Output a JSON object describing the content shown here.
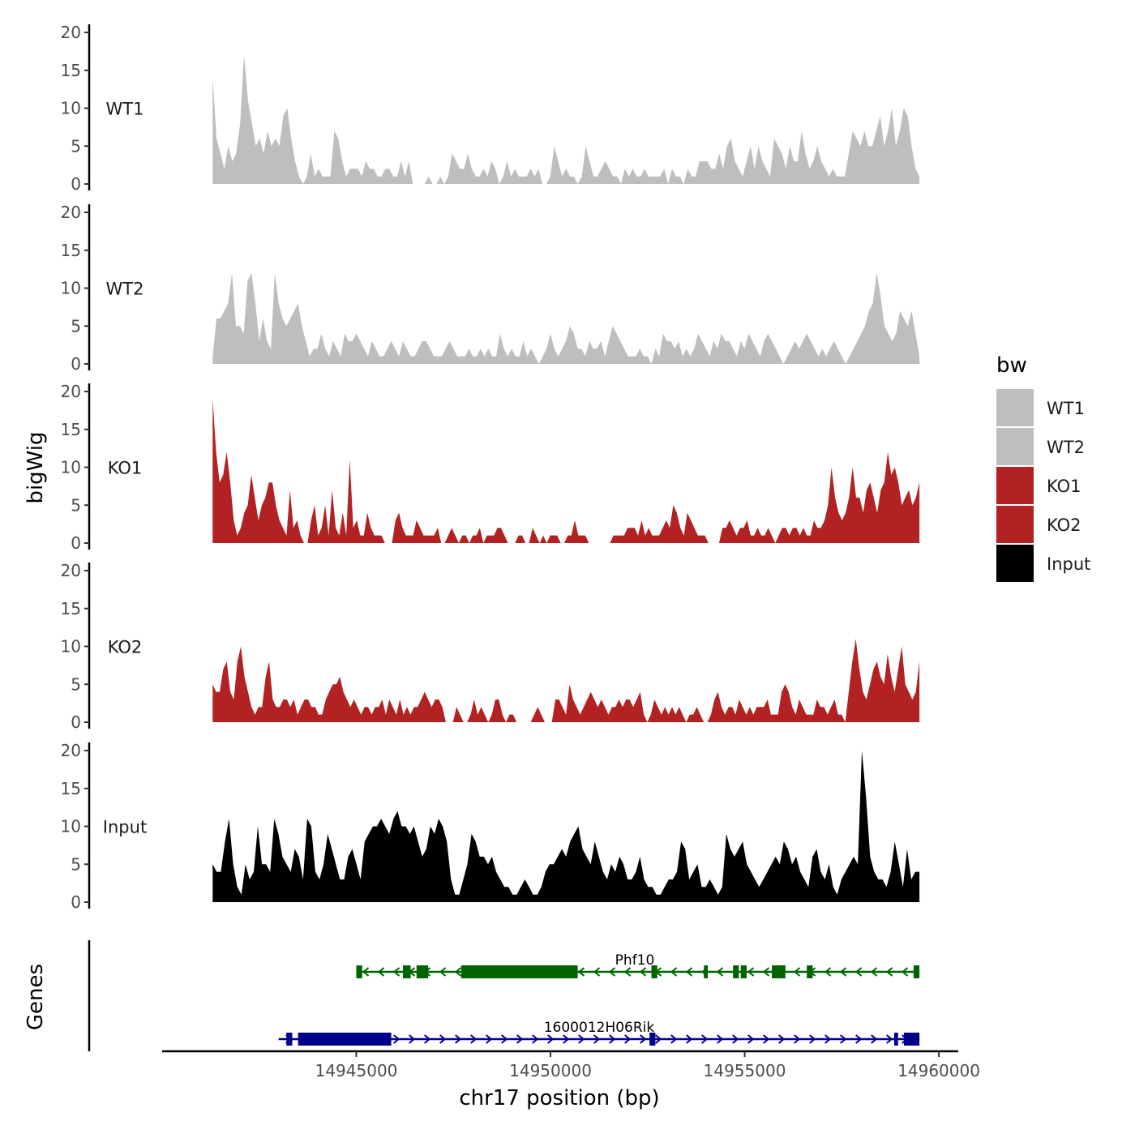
{
  "chart_data": {
    "type": "area",
    "title": "",
    "ylabel": "bigWig",
    "xlabel": "chr17 position (bp)",
    "genes_label": "Genes",
    "chromosome": "chr17",
    "xlim": [
      14940000,
      14960500
    ],
    "x_start": 14941300,
    "x_end": 14959500,
    "ylim": [
      0,
      20
    ],
    "y_ticks": [
      0,
      5,
      10,
      15,
      20
    ],
    "x_ticks": [
      14945000,
      14950000,
      14955000,
      14960000
    ],
    "x_tick_labels": [
      "14945000",
      "14950000",
      "14955000",
      "14960000"
    ],
    "legend": {
      "title": "bw",
      "entries": [
        {
          "label": "WT1",
          "color": "#bebebe"
        },
        {
          "label": "WT2",
          "color": "#bebebe"
        },
        {
          "label": "KO1",
          "color": "#b22222"
        },
        {
          "label": "KO2",
          "color": "#b22222"
        },
        {
          "label": "Input",
          "color": "#000000"
        }
      ]
    },
    "tracks": [
      {
        "name": "WT1",
        "color": "#bebebe",
        "values": [
          14,
          6,
          4,
          2,
          5,
          3,
          4,
          8,
          17,
          11,
          8,
          5,
          6,
          4,
          7,
          5,
          6,
          5,
          9,
          10,
          6,
          3,
          1,
          0,
          1,
          4,
          1,
          2,
          1,
          1,
          1,
          7,
          6,
          3,
          1,
          2,
          2,
          2,
          1,
          3,
          2,
          2,
          1,
          1,
          2,
          2,
          1,
          1,
          3,
          1,
          3,
          0,
          0,
          0,
          0,
          1,
          0,
          0,
          1,
          0,
          1,
          4,
          3,
          2,
          2,
          4,
          2,
          1,
          1,
          2,
          1,
          3,
          2,
          0,
          1,
          3,
          1,
          2,
          1,
          1,
          1,
          2,
          1,
          2,
          0,
          0,
          1,
          5,
          3,
          1,
          2,
          1,
          1,
          0,
          1,
          5,
          3,
          1,
          1,
          2,
          3,
          2,
          1,
          1,
          0,
          2,
          1,
          2,
          1,
          1,
          2,
          1,
          1,
          1,
          1,
          2,
          0,
          2,
          1,
          1,
          0,
          2,
          1,
          1,
          3,
          3,
          3,
          2,
          2,
          4,
          2,
          5,
          6,
          3,
          2,
          1,
          3,
          5,
          2,
          5,
          3,
          2,
          1,
          6,
          5,
          4,
          2,
          5,
          3,
          3,
          7,
          4,
          2,
          3,
          5,
          3,
          2,
          1,
          2,
          1,
          1,
          1,
          4,
          7,
          6,
          5,
          7,
          5,
          5,
          7,
          9,
          5,
          7,
          10,
          5,
          7,
          10,
          9,
          5,
          2,
          1
        ]
      },
      {
        "name": "WT2",
        "color": "#bebebe",
        "values": [
          1,
          6,
          6,
          7,
          8,
          12,
          5,
          5,
          4,
          11,
          12,
          8,
          3,
          6,
          3,
          2,
          12,
          8,
          6,
          5,
          6,
          7,
          8,
          5,
          3,
          1,
          2,
          2,
          4,
          2,
          1,
          3,
          2,
          1,
          4,
          3,
          3,
          4,
          3,
          2,
          1,
          3,
          2,
          1,
          1,
          2,
          3,
          2,
          1,
          3,
          2,
          1,
          1,
          2,
          3,
          3,
          2,
          1,
          1,
          1,
          2,
          3,
          2,
          1,
          1,
          1,
          2,
          1,
          1,
          2,
          1,
          2,
          1,
          1,
          4,
          2,
          1,
          2,
          1,
          1,
          3,
          1,
          2,
          1,
          0,
          1,
          2,
          4,
          2,
          1,
          2,
          3,
          5,
          4,
          2,
          2,
          1,
          3,
          2,
          2,
          3,
          1,
          3,
          5,
          4,
          3,
          2,
          1,
          1,
          1,
          2,
          1,
          1,
          0,
          2,
          1,
          4,
          3,
          3,
          2,
          3,
          1,
          2,
          1,
          2,
          4,
          3,
          2,
          1,
          3,
          2,
          4,
          3,
          3,
          2,
          1,
          3,
          2,
          4,
          3,
          2,
          1,
          3,
          4,
          3,
          2,
          1,
          0,
          1,
          2,
          3,
          2,
          3,
          4,
          3,
          2,
          1,
          2,
          1,
          2,
          3,
          2,
          1,
          0,
          1,
          2,
          3,
          4,
          5,
          7,
          8,
          12,
          9,
          5,
          4,
          3,
          4,
          7,
          6,
          5,
          7,
          4,
          1
        ]
      },
      {
        "name": "KO1",
        "color": "#b22222",
        "values": [
          19,
          12,
          8,
          9,
          12,
          8,
          3,
          1,
          2,
          4,
          5,
          9,
          6,
          3,
          5,
          6,
          8,
          8,
          5,
          3,
          2,
          1,
          7,
          2,
          3,
          1,
          0,
          0,
          3,
          5,
          1,
          2,
          5,
          1,
          7,
          2,
          1,
          4,
          1,
          11,
          2,
          3,
          1,
          1,
          4,
          2,
          1,
          1,
          1,
          0,
          0,
          0,
          3,
          4,
          2,
          1,
          1,
          1,
          3,
          2,
          1,
          1,
          1,
          1,
          2,
          0,
          0,
          1,
          2,
          1,
          0,
          1,
          1,
          0,
          1,
          1,
          2,
          0,
          1,
          1,
          1,
          2,
          2,
          1,
          0,
          0,
          0,
          1,
          1,
          0,
          0,
          2,
          1,
          0,
          1,
          0,
          1,
          1,
          1,
          0,
          0,
          1,
          1,
          3,
          1,
          1,
          1,
          0,
          0,
          0,
          0,
          0,
          0,
          0,
          1,
          1,
          1,
          1,
          2,
          2,
          2,
          1,
          3,
          1,
          2,
          1,
          1,
          1,
          2,
          3,
          2,
          5,
          4,
          2,
          1,
          4,
          3,
          2,
          1,
          1,
          1,
          0,
          0,
          0,
          0,
          2,
          2,
          3,
          2,
          1,
          2,
          2,
          3,
          1,
          1,
          2,
          1,
          1,
          2,
          1,
          0,
          1,
          2,
          2,
          1,
          2,
          2,
          1,
          2,
          1,
          1,
          3,
          2,
          2,
          3,
          5,
          10,
          6,
          4,
          3,
          4,
          6,
          10,
          6,
          6,
          4,
          7,
          8,
          6,
          4,
          7,
          8,
          12,
          9,
          10,
          8,
          5,
          6,
          7,
          5,
          6,
          8
        ]
      },
      {
        "name": "KO2",
        "color": "#b22222",
        "values": [
          5,
          4,
          4,
          7,
          8,
          4,
          3,
          8,
          10,
          6,
          4,
          2,
          1,
          2,
          2,
          6,
          8,
          3,
          2,
          2,
          3,
          3,
          2,
          3,
          1,
          2,
          3,
          3,
          2,
          2,
          1,
          1,
          3,
          4,
          5,
          5,
          6,
          4,
          3,
          2,
          3,
          2,
          1,
          2,
          2,
          1,
          2,
          2,
          3,
          1,
          3,
          2,
          1,
          3,
          1,
          2,
          1,
          2,
          2,
          3,
          4,
          3,
          2,
          3,
          3,
          2,
          0,
          0,
          0,
          2,
          1,
          0,
          0,
          1,
          3,
          1,
          2,
          1,
          0,
          1,
          3,
          3,
          1,
          0,
          1,
          1,
          0,
          0,
          0,
          0,
          0,
          1,
          2,
          1,
          0,
          0,
          0,
          3,
          3,
          2,
          1,
          5,
          3,
          2,
          1,
          2,
          3,
          4,
          3,
          2,
          3,
          2,
          1,
          2,
          2,
          3,
          2,
          3,
          3,
          2,
          3,
          4,
          1,
          0,
          1,
          3,
          2,
          1,
          2,
          1,
          2,
          1,
          2,
          1,
          0,
          1,
          1,
          2,
          1,
          0,
          0,
          1,
          3,
          4,
          2,
          1,
          2,
          2,
          1,
          3,
          2,
          1,
          2,
          1,
          2,
          2,
          2,
          3,
          1,
          1,
          1,
          4,
          5,
          4,
          2,
          1,
          3,
          2,
          1,
          1,
          1,
          3,
          2,
          2,
          1,
          2,
          3,
          1,
          1,
          0,
          4,
          8,
          11,
          7,
          4,
          3,
          5,
          7,
          8,
          6,
          5,
          9,
          6,
          4,
          7,
          10,
          5,
          4,
          3,
          4,
          8
        ]
      },
      {
        "name": "Input",
        "color": "#000000",
        "values": [
          5,
          4,
          4,
          8,
          11,
          5,
          2,
          1,
          5,
          3,
          4,
          10,
          5,
          5,
          4,
          11,
          9,
          6,
          5,
          4,
          7,
          6,
          3,
          11,
          10,
          4,
          3,
          5,
          9,
          7,
          5,
          3,
          3,
          6,
          7,
          5,
          3,
          8,
          9,
          10,
          10,
          11,
          10,
          9,
          11,
          12,
          10,
          10,
          9,
          10,
          8,
          6,
          7,
          10,
          9,
          11,
          10,
          8,
          3,
          1,
          1,
          3,
          5,
          9,
          8,
          6,
          6,
          5,
          6,
          4,
          3,
          2,
          2,
          1,
          1,
          2,
          3,
          2,
          1,
          1,
          2,
          4,
          5,
          5,
          6,
          7,
          6,
          8,
          9,
          10,
          7,
          6,
          5,
          8,
          6,
          4,
          3,
          5,
          4,
          6,
          5,
          3,
          3,
          4,
          6,
          3,
          2,
          2,
          1,
          1,
          2,
          3,
          3,
          4,
          8,
          7,
          3,
          4,
          5,
          2,
          2,
          3,
          2,
          1,
          2,
          9,
          7,
          6,
          7,
          8,
          5,
          4,
          3,
          2,
          3,
          4,
          5,
          6,
          5,
          8,
          7,
          5,
          6,
          4,
          3,
          2,
          6,
          7,
          4,
          3,
          5,
          2,
          1,
          3,
          4,
          5,
          6,
          5,
          20,
          14,
          6,
          4,
          3,
          3,
          2,
          4,
          8,
          5,
          2,
          7,
          3,
          4,
          4
        ]
      }
    ],
    "genes": [
      {
        "name": "Phf10",
        "strand": "-",
        "color": "#006400",
        "start": 14945000,
        "end": 14959500,
        "exons": [
          [
            14945000,
            14945150
          ],
          [
            14946200,
            14946400
          ],
          [
            14946550,
            14946850
          ],
          [
            14947700,
            14950700
          ],
          [
            14952600,
            14952750
          ],
          [
            14953950,
            14954050
          ],
          [
            14954700,
            14954850
          ],
          [
            14954900,
            14955050
          ],
          [
            14955700,
            14956050
          ],
          [
            14956600,
            14956750
          ],
          [
            14959350,
            14959500
          ]
        ]
      },
      {
        "name": "1600012H06Rik",
        "strand": "+",
        "color": "#00008b",
        "start": 14943000,
        "end": 14959500,
        "exons": [
          [
            14943200,
            14943350
          ],
          [
            14943500,
            14945900
          ],
          [
            14952550,
            14952700
          ],
          [
            14958850,
            14958950
          ],
          [
            14959100,
            14959500
          ]
        ]
      }
    ]
  }
}
